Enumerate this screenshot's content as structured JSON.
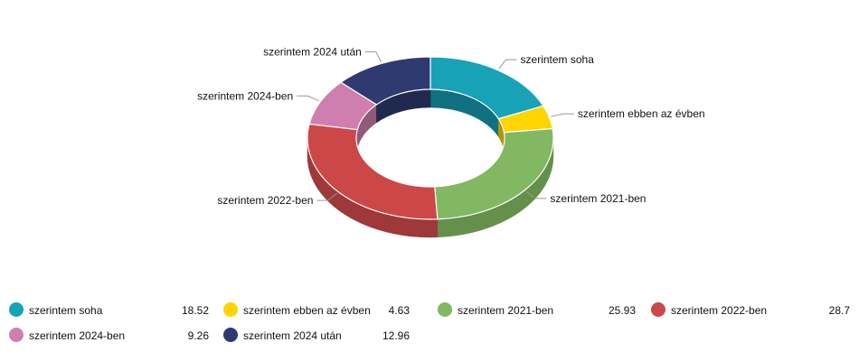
{
  "chart_data": {
    "type": "pie",
    "variant": "donut-3d",
    "categories": [
      "szerintem soha",
      "szerintem ebben az évben",
      "szerintem 2021-ben",
      "szerintem 2022-ben",
      "szerintem 2024-ben",
      "szerintem 2024 után"
    ],
    "values": [
      18.52,
      4.63,
      25.93,
      28.7,
      9.26,
      12.96
    ],
    "value_labels": [
      "18.52",
      "4.63",
      "25.93",
      "28.7",
      "9.26",
      "12.96"
    ],
    "colors": [
      "#17a2b8",
      "#ffd400",
      "#82b862",
      "#cc4848",
      "#cf7fae",
      "#2e3a70"
    ],
    "legend_position": "bottom",
    "title": ""
  }
}
